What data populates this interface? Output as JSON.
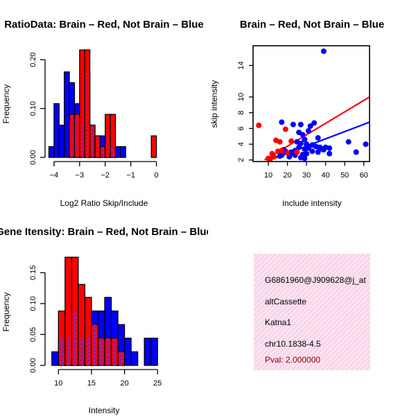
{
  "colors": {
    "red": "#ff0000",
    "blue": "#0000ff",
    "overlap": "#8b1a8b",
    "overlap_hatch": "#d23cd2",
    "info_bg": "#fbe3f1",
    "info_hatch": "#efb0d4",
    "pval": "#8b0000"
  },
  "chart_data": [
    {
      "id": "ratio-hist",
      "type": "bar",
      "title": "RatioData: Brain – Red, Not Brain – Blue",
      "xlabel": "Log2 Ratio Skip/Include",
      "ylabel": "Frequency",
      "xlim": [
        -4.2,
        0.2
      ],
      "ylim": [
        0,
        0.22
      ],
      "xticks": [
        -4,
        -3,
        -2,
        -1,
        0
      ],
      "yticks": [
        0.0,
        0.1,
        0.2
      ],
      "ytick_labels": [
        "0.00",
        "0.10",
        "0.20"
      ],
      "series": [
        {
          "name": "Not Brain",
          "color": "blue",
          "bins": [
            {
              "x0": -4.2,
              "x1": -4.0,
              "h": 0.022
            },
            {
              "x0": -4.0,
              "x1": -3.8,
              "h": 0.11
            },
            {
              "x0": -3.8,
              "x1": -3.6,
              "h": 0.066
            },
            {
              "x0": -3.6,
              "x1": -3.4,
              "h": 0.175
            },
            {
              "x0": -3.4,
              "x1": -3.2,
              "h": 0.153
            },
            {
              "x0": -3.2,
              "x1": -3.0,
              "h": 0.11
            },
            {
              "x0": -3.0,
              "x1": -2.8,
              "h": 0.066
            },
            {
              "x0": -2.8,
              "x1": -2.6,
              "h": 0.175
            },
            {
              "x0": -2.6,
              "x1": -2.4,
              "h": 0.066
            },
            {
              "x0": -2.4,
              "x1": -2.2,
              "h": 0.044
            },
            {
              "x0": -2.2,
              "x1": -2.0,
              "h": 0.044
            },
            {
              "x0": -2.0,
              "x1": -1.8,
              "h": 0.044
            },
            {
              "x0": -1.8,
              "x1": -1.6,
              "h": 0.022
            },
            {
              "x0": -1.6,
              "x1": -1.4,
              "h": 0.022
            },
            {
              "x0": -1.4,
              "x1": -1.2,
              "h": 0.022
            }
          ]
        },
        {
          "name": "Brain",
          "color": "red",
          "bins": [
            {
              "x0": -3.4,
              "x1": -3.2,
              "h": 0.088
            },
            {
              "x0": -3.2,
              "x1": -3.0,
              "h": 0.088
            },
            {
              "x0": -3.0,
              "x1": -2.8,
              "h": 0.22
            },
            {
              "x0": -2.8,
              "x1": -2.6,
              "h": 0.22
            },
            {
              "x0": -2.6,
              "x1": -2.4,
              "h": 0.066
            },
            {
              "x0": -2.4,
              "x1": -2.2,
              "h": 0.044
            },
            {
              "x0": -2.2,
              "x1": -2.0,
              "h": 0.022
            },
            {
              "x0": -2.0,
              "x1": -1.8,
              "h": 0.088
            },
            {
              "x0": -1.8,
              "x1": -1.6,
              "h": 0.088
            },
            {
              "x0": -0.2,
              "x1": 0.0,
              "h": 0.044
            }
          ]
        }
      ]
    },
    {
      "id": "scatter",
      "type": "scatter",
      "title": "Brain – Red, Not Brain – Blue",
      "xlabel": "include intensity",
      "ylabel": "skip intensity",
      "xlim": [
        2,
        63
      ],
      "ylim": [
        1.8,
        16.5
      ],
      "xticks": [
        10,
        20,
        30,
        40,
        50,
        60
      ],
      "yticks": [
        2,
        4,
        6,
        8,
        10,
        14
      ],
      "series": [
        {
          "name": "Not Brain",
          "color": "blue",
          "points": [
            [
              39,
              15.8
            ],
            [
              17,
              6.8
            ],
            [
              23,
              6.5
            ],
            [
              27,
              6.5
            ],
            [
              34,
              6.7
            ],
            [
              32,
              6.3
            ],
            [
              26,
              5.5
            ],
            [
              31,
              5.7
            ],
            [
              28,
              5.2
            ],
            [
              36,
              4.8
            ],
            [
              29,
              4.6
            ],
            [
              25,
              4.3
            ],
            [
              27,
              4.1
            ],
            [
              30,
              4.0
            ],
            [
              33,
              3.9
            ],
            [
              35,
              3.7
            ],
            [
              37,
              3.6
            ],
            [
              40,
              3.6
            ],
            [
              42,
              3.5
            ],
            [
              38,
              3.4
            ],
            [
              31,
              3.5
            ],
            [
              29,
              3.4
            ],
            [
              26,
              3.6
            ],
            [
              24,
              3.2
            ],
            [
              22,
              3.0
            ],
            [
              20,
              2.9
            ],
            [
              19,
              3.1
            ],
            [
              17,
              2.6
            ],
            [
              16,
              2.5
            ],
            [
              21,
              2.4
            ],
            [
              24,
              2.6
            ],
            [
              28,
              2.7
            ],
            [
              30,
              2.8
            ],
            [
              33,
              3.1
            ],
            [
              36,
              3.0
            ],
            [
              39,
              3.3
            ],
            [
              42,
              2.8
            ],
            [
              52,
              4.3
            ],
            [
              56,
              3.0
            ],
            [
              61,
              4.0
            ],
            [
              27,
              2.3
            ],
            [
              29,
              2.2
            ],
            [
              18,
              3.3
            ],
            [
              23,
              2.8
            ]
          ]
        },
        {
          "name": "Brain",
          "color": "red",
          "points": [
            [
              5,
              6.4
            ],
            [
              19,
              5.9
            ],
            [
              14,
              4.5
            ],
            [
              16,
              4.3
            ],
            [
              22,
              4.4
            ],
            [
              10,
              2.2
            ],
            [
              12,
              2.8
            ],
            [
              15,
              3.1
            ],
            [
              17,
              3.2
            ],
            [
              20,
              2.9
            ],
            [
              25,
              3.0
            ],
            [
              11,
              2.1
            ],
            [
              13,
              2.4
            ]
          ]
        }
      ],
      "fit_lines": [
        {
          "color": "red",
          "from": [
            8,
            2.0
          ],
          "to": [
            63,
            10.0
          ]
        },
        {
          "color": "blue",
          "from": [
            13,
            2.2
          ],
          "to": [
            63,
            6.8
          ]
        }
      ]
    },
    {
      "id": "intensity-hist",
      "type": "bar",
      "title": "Gene Itensity: Brain – Red, Not Brain – Blue",
      "xlabel": "Intensity",
      "ylabel": "Frequency",
      "xlim": [
        8.5,
        25.5
      ],
      "ylim": [
        0,
        0.175
      ],
      "xticks": [
        10,
        15,
        20,
        25
      ],
      "yticks": [
        0.0,
        0.05,
        0.1,
        0.15
      ],
      "ytick_labels": [
        "0.00",
        "0.05",
        "0.10",
        "0.15"
      ],
      "series": [
        {
          "name": "Not Brain",
          "color": "blue",
          "bins": [
            {
              "x0": 9,
              "x1": 10,
              "h": 0.022
            },
            {
              "x0": 10,
              "x1": 11,
              "h": 0.044
            },
            {
              "x0": 11,
              "x1": 12,
              "h": 0.044
            },
            {
              "x0": 12,
              "x1": 13,
              "h": 0.088
            },
            {
              "x0": 13,
              "x1": 14,
              "h": 0.044
            },
            {
              "x0": 14,
              "x1": 15,
              "h": 0.044
            },
            {
              "x0": 15,
              "x1": 16,
              "h": 0.088
            },
            {
              "x0": 16,
              "x1": 17,
              "h": 0.088
            },
            {
              "x0": 17,
              "x1": 18,
              "h": 0.11
            },
            {
              "x0": 18,
              "x1": 19,
              "h": 0.088
            },
            {
              "x0": 19,
              "x1": 20,
              "h": 0.066
            },
            {
              "x0": 20,
              "x1": 21,
              "h": 0.044
            },
            {
              "x0": 21,
              "x1": 22,
              "h": 0.022
            },
            {
              "x0": 23,
              "x1": 24,
              "h": 0.044
            },
            {
              "x0": 24,
              "x1": 25,
              "h": 0.044
            }
          ]
        },
        {
          "name": "Brain",
          "color": "red",
          "bins": [
            {
              "x0": 10,
              "x1": 11,
              "h": 0.088
            },
            {
              "x0": 11,
              "x1": 12,
              "h": 0.175
            },
            {
              "x0": 12,
              "x1": 13,
              "h": 0.175
            },
            {
              "x0": 13,
              "x1": 14,
              "h": 0.131
            },
            {
              "x0": 14,
              "x1": 15,
              "h": 0.11
            },
            {
              "x0": 15,
              "x1": 16,
              "h": 0.066
            },
            {
              "x0": 16,
              "x1": 17,
              "h": 0.044
            },
            {
              "x0": 17,
              "x1": 18,
              "h": 0.044
            },
            {
              "x0": 18,
              "x1": 19,
              "h": 0.044
            },
            {
              "x0": 19,
              "x1": 20,
              "h": 0.022
            }
          ]
        }
      ]
    }
  ],
  "info": {
    "lines": [
      "G6861960@J909628@j_at",
      "altCassette",
      "Katna1",
      "chr10.1838-4.5"
    ],
    "pval": "Pval: 2.000000"
  }
}
